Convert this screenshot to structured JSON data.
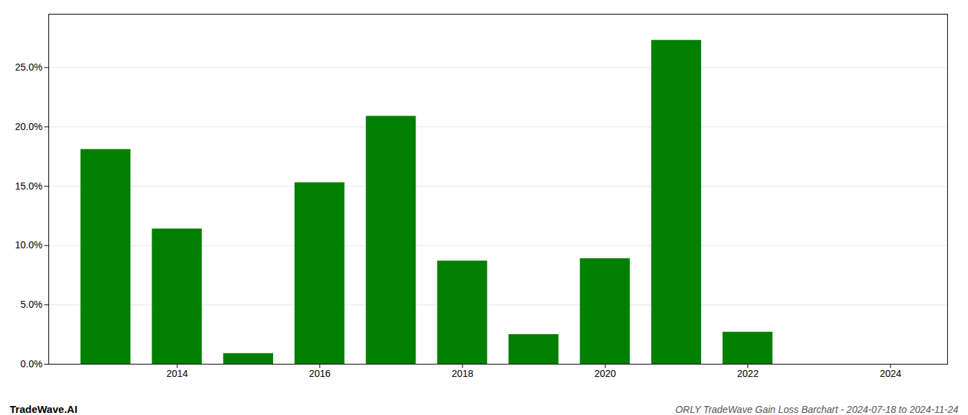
{
  "chart_data": {
    "type": "bar",
    "title": "ORLY TradeWave Gain Loss Barchart - 2024-07-18 to 2024-11-24",
    "annotations": [
      "TradeWave.AI"
    ],
    "x": [
      2013,
      2014,
      2015,
      2016,
      2017,
      2018,
      2019,
      2020,
      2021,
      2022,
      2023
    ],
    "values": [
      0.181,
      0.114,
      0.009,
      0.153,
      0.209,
      0.087,
      0.025,
      0.089,
      0.273,
      0.027,
      0.0
    ],
    "color": "#008000",
    "xlim": [
      2012.2,
      2024.8
    ],
    "xticks": [
      2014,
      2016,
      2018,
      2020,
      2022,
      2024
    ],
    "ylim": [
      0.0,
      0.295
    ],
    "yticks": [
      {
        "value": 0.0,
        "label": "0.0%"
      },
      {
        "value": 0.05,
        "label": "5.0%"
      },
      {
        "value": 0.1,
        "label": "10.0%"
      },
      {
        "value": 0.15,
        "label": "15.0%"
      },
      {
        "value": 0.2,
        "label": "20.0%"
      },
      {
        "value": 0.25,
        "label": "25.0%"
      }
    ],
    "grid": true
  }
}
